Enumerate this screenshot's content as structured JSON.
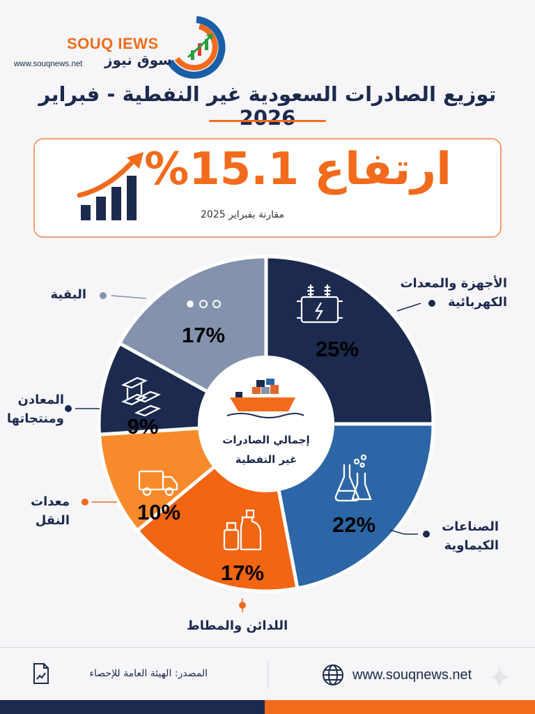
{
  "brand": {
    "name": "SOUQ IEWS",
    "name_ar": "سوق نيوز",
    "url": "www.souqnews.net"
  },
  "title": "توزيع الصادرات السعودية غير النفطية - فبراير 2026",
  "headline": {
    "text": "ارتفاع 15.1%",
    "value": 15.1,
    "comparison": "مقارنة بفبراير 2025"
  },
  "chart_data": {
    "type": "pie",
    "title": "توزيع الصادرات السعودية غير النفطية - فبراير 2026",
    "center_label": [
      "إجمالي الصادرات",
      "غير النفطية"
    ],
    "slices": [
      {
        "label": "الأجهزة والمعدات الكهربائية",
        "label_lines": [
          "الأجهزة والمعدات",
          "الكهربائية"
        ],
        "value": 25,
        "value_label": "25%",
        "icon": "transformer-icon",
        "color": "#1b2a4e",
        "marker_color": "#1b2a4e"
      },
      {
        "label": "الصناعات الكيماوية",
        "label_lines": [
          "الصناعات",
          "الكيماوية"
        ],
        "value": 22,
        "value_label": "22%",
        "icon": "flask-icon",
        "color": "#2d66a6",
        "marker_color": "#1b2a4e"
      },
      {
        "label": "اللدائن والمطاط",
        "label_lines": [
          "اللدائن والمطاط"
        ],
        "value": 17,
        "value_label": "17%",
        "icon": "bottles-icon",
        "color": "#f26512",
        "marker_color": "#f26b1d"
      },
      {
        "label": "معدات النقل",
        "label_lines": [
          "معدات",
          "النقل"
        ],
        "value": 10,
        "value_label": "10%",
        "icon": "truck-icon",
        "color": "#f78b2c",
        "marker_color": "#f26b1d"
      },
      {
        "label": "المعادن ومنتجاتها",
        "label_lines": [
          "المعادن",
          "ومنتجاتها"
        ],
        "value": 9,
        "value_label": "9%",
        "icon": "steel-beams-icon",
        "color": "#1b2a4e",
        "marker_color": "#1b2a4e"
      },
      {
        "label": "البقية",
        "label_lines": [
          "البقية"
        ],
        "value": 17,
        "value_label": "17%",
        "icon": "dots-icon",
        "color": "#8393ad",
        "marker_color": "#8393ad"
      }
    ]
  },
  "footer": {
    "source": "المصدر: الهيئة العامة للإحصاء",
    "website": "www.souqnews.net"
  },
  "colors": {
    "navy": "#1b2a4e",
    "orange": "#f26b1d",
    "background": "#f6f6f8"
  }
}
